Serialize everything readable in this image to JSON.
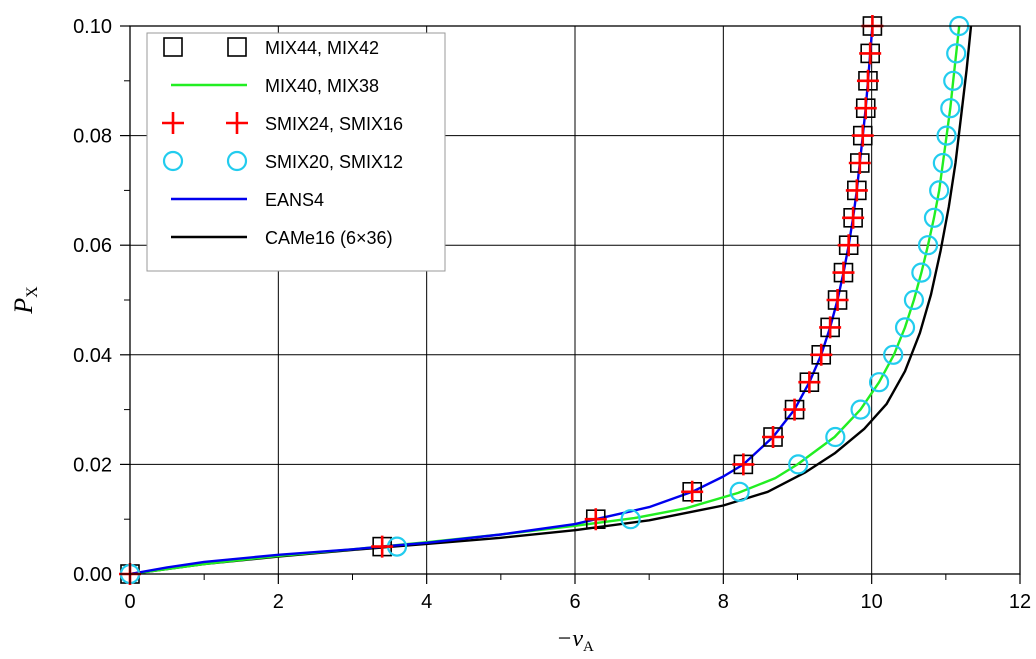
{
  "chart_data": {
    "type": "line",
    "xlabel": "−v",
    "xlabel_subscript": "A",
    "ylabel": "P",
    "ylabel_subscript": "X",
    "xlim": [
      0,
      12
    ],
    "ylim": [
      0,
      0.1
    ],
    "x_ticks": [
      "0",
      "2",
      "4",
      "6",
      "8",
      "10",
      "12"
    ],
    "y_ticks": [
      "0.00",
      "0.02",
      "0.04",
      "0.06",
      "0.08",
      "0.10"
    ],
    "x_tick_values": [
      0,
      2,
      4,
      6,
      8,
      10,
      12
    ],
    "y_tick_values": [
      0,
      0.02,
      0.04,
      0.06,
      0.08,
      0.1
    ],
    "grid": true,
    "legend_placement": "top-left",
    "series": [
      {
        "name": "MIX44, MIX42",
        "style": "square-markers",
        "color": "#000000",
        "points": [
          [
            0,
            0
          ],
          [
            3.4,
            0.005
          ],
          [
            6.28,
            0.01
          ],
          [
            7.58,
            0.015
          ],
          [
            8.27,
            0.02
          ],
          [
            8.67,
            0.025
          ],
          [
            8.96,
            0.03
          ],
          [
            9.16,
            0.035
          ],
          [
            9.32,
            0.04
          ],
          [
            9.44,
            0.045
          ],
          [
            9.54,
            0.05
          ],
          [
            9.62,
            0.055
          ],
          [
            9.69,
            0.06
          ],
          [
            9.75,
            0.065
          ],
          [
            9.8,
            0.07
          ],
          [
            9.84,
            0.075
          ],
          [
            9.88,
            0.08
          ],
          [
            9.92,
            0.085
          ],
          [
            9.95,
            0.09
          ],
          [
            9.98,
            0.095
          ],
          [
            10.01,
            0.1
          ]
        ]
      },
      {
        "name": "MIX40, MIX38",
        "style": "line",
        "color": "#22ee22",
        "points": [
          [
            0,
            0
          ],
          [
            1,
            0.0018
          ],
          [
            2,
            0.0033
          ],
          [
            3,
            0.0045
          ],
          [
            4,
            0.0058
          ],
          [
            5,
            0.0072
          ],
          [
            6,
            0.0088
          ],
          [
            6.8,
            0.0102
          ],
          [
            7.5,
            0.012
          ],
          [
            8.2,
            0.0148
          ],
          [
            8.7,
            0.0175
          ],
          [
            9.0,
            0.02
          ],
          [
            9.5,
            0.025
          ],
          [
            9.85,
            0.03
          ],
          [
            10.1,
            0.035
          ],
          [
            10.3,
            0.04
          ],
          [
            10.45,
            0.045
          ],
          [
            10.57,
            0.05
          ],
          [
            10.67,
            0.055
          ],
          [
            10.76,
            0.06
          ],
          [
            10.84,
            0.065
          ],
          [
            10.91,
            0.07
          ],
          [
            10.96,
            0.075
          ],
          [
            11.01,
            0.08
          ],
          [
            11.06,
            0.085
          ],
          [
            11.1,
            0.09
          ],
          [
            11.14,
            0.095
          ],
          [
            11.18,
            0.1
          ]
        ]
      },
      {
        "name": "SMIX24, SMIX16",
        "style": "plus-markers",
        "color": "#ff0000",
        "points": [
          [
            0,
            0
          ],
          [
            3.4,
            0.005
          ],
          [
            6.28,
            0.01
          ],
          [
            7.58,
            0.015
          ],
          [
            8.27,
            0.02
          ],
          [
            8.67,
            0.025
          ],
          [
            8.96,
            0.03
          ],
          [
            9.16,
            0.035
          ],
          [
            9.32,
            0.04
          ],
          [
            9.44,
            0.045
          ],
          [
            9.54,
            0.05
          ],
          [
            9.62,
            0.055
          ],
          [
            9.69,
            0.06
          ],
          [
            9.75,
            0.065
          ],
          [
            9.8,
            0.07
          ],
          [
            9.84,
            0.075
          ],
          [
            9.88,
            0.08
          ],
          [
            9.92,
            0.085
          ],
          [
            9.95,
            0.09
          ],
          [
            9.98,
            0.095
          ],
          [
            10.01,
            0.1
          ]
        ]
      },
      {
        "name": "SMIX20, SMIX12",
        "style": "circle-markers",
        "color": "#22ccee",
        "points": [
          [
            0,
            0
          ],
          [
            3.6,
            0.005
          ],
          [
            6.75,
            0.01
          ],
          [
            8.22,
            0.015
          ],
          [
            9.01,
            0.02
          ],
          [
            9.51,
            0.025
          ],
          [
            9.85,
            0.03
          ],
          [
            10.1,
            0.035
          ],
          [
            10.29,
            0.04
          ],
          [
            10.45,
            0.045
          ],
          [
            10.57,
            0.05
          ],
          [
            10.67,
            0.055
          ],
          [
            10.76,
            0.06
          ],
          [
            10.84,
            0.065
          ],
          [
            10.91,
            0.07
          ],
          [
            10.96,
            0.075
          ],
          [
            11.01,
            0.08
          ],
          [
            11.06,
            0.085
          ],
          [
            11.1,
            0.09
          ],
          [
            11.14,
            0.095
          ],
          [
            11.18,
            0.1
          ]
        ]
      },
      {
        "name": "EANS4",
        "style": "line",
        "color": "#0000ee",
        "points": [
          [
            0,
            0
          ],
          [
            0.5,
            0.0012
          ],
          [
            1,
            0.0022
          ],
          [
            2,
            0.0035
          ],
          [
            3,
            0.0045
          ],
          [
            3.4,
            0.005
          ],
          [
            4,
            0.0057
          ],
          [
            5,
            0.0072
          ],
          [
            6,
            0.0091
          ],
          [
            6.28,
            0.01
          ],
          [
            7,
            0.0122
          ],
          [
            7.58,
            0.015
          ],
          [
            8,
            0.0178
          ],
          [
            8.27,
            0.02
          ],
          [
            8.67,
            0.025
          ],
          [
            8.96,
            0.03
          ],
          [
            9.16,
            0.035
          ],
          [
            9.32,
            0.04
          ],
          [
            9.44,
            0.045
          ],
          [
            9.54,
            0.05
          ],
          [
            9.62,
            0.055
          ],
          [
            9.69,
            0.06
          ],
          [
            9.75,
            0.065
          ],
          [
            9.8,
            0.07
          ],
          [
            9.84,
            0.075
          ],
          [
            9.88,
            0.08
          ],
          [
            9.92,
            0.085
          ],
          [
            9.95,
            0.09
          ],
          [
            9.98,
            0.095
          ],
          [
            10.01,
            0.1
          ]
        ]
      },
      {
        "name": "CAMe16 (6×36)",
        "style": "line",
        "color": "#000000",
        "points": [
          [
            0,
            0
          ],
          [
            1,
            0.0018
          ],
          [
            2,
            0.0032
          ],
          [
            3,
            0.0044
          ],
          [
            4,
            0.0055
          ],
          [
            5,
            0.0066
          ],
          [
            6,
            0.008
          ],
          [
            7,
            0.0098
          ],
          [
            8,
            0.0125
          ],
          [
            8.6,
            0.015
          ],
          [
            9.1,
            0.0185
          ],
          [
            9.5,
            0.022
          ],
          [
            9.9,
            0.0265
          ],
          [
            10.2,
            0.031
          ],
          [
            10.45,
            0.037
          ],
          [
            10.65,
            0.044
          ],
          [
            10.8,
            0.051
          ],
          [
            10.93,
            0.059
          ],
          [
            11.04,
            0.067
          ],
          [
            11.13,
            0.075
          ],
          [
            11.21,
            0.084
          ],
          [
            11.28,
            0.092
          ],
          [
            11.34,
            0.1
          ]
        ]
      }
    ]
  }
}
